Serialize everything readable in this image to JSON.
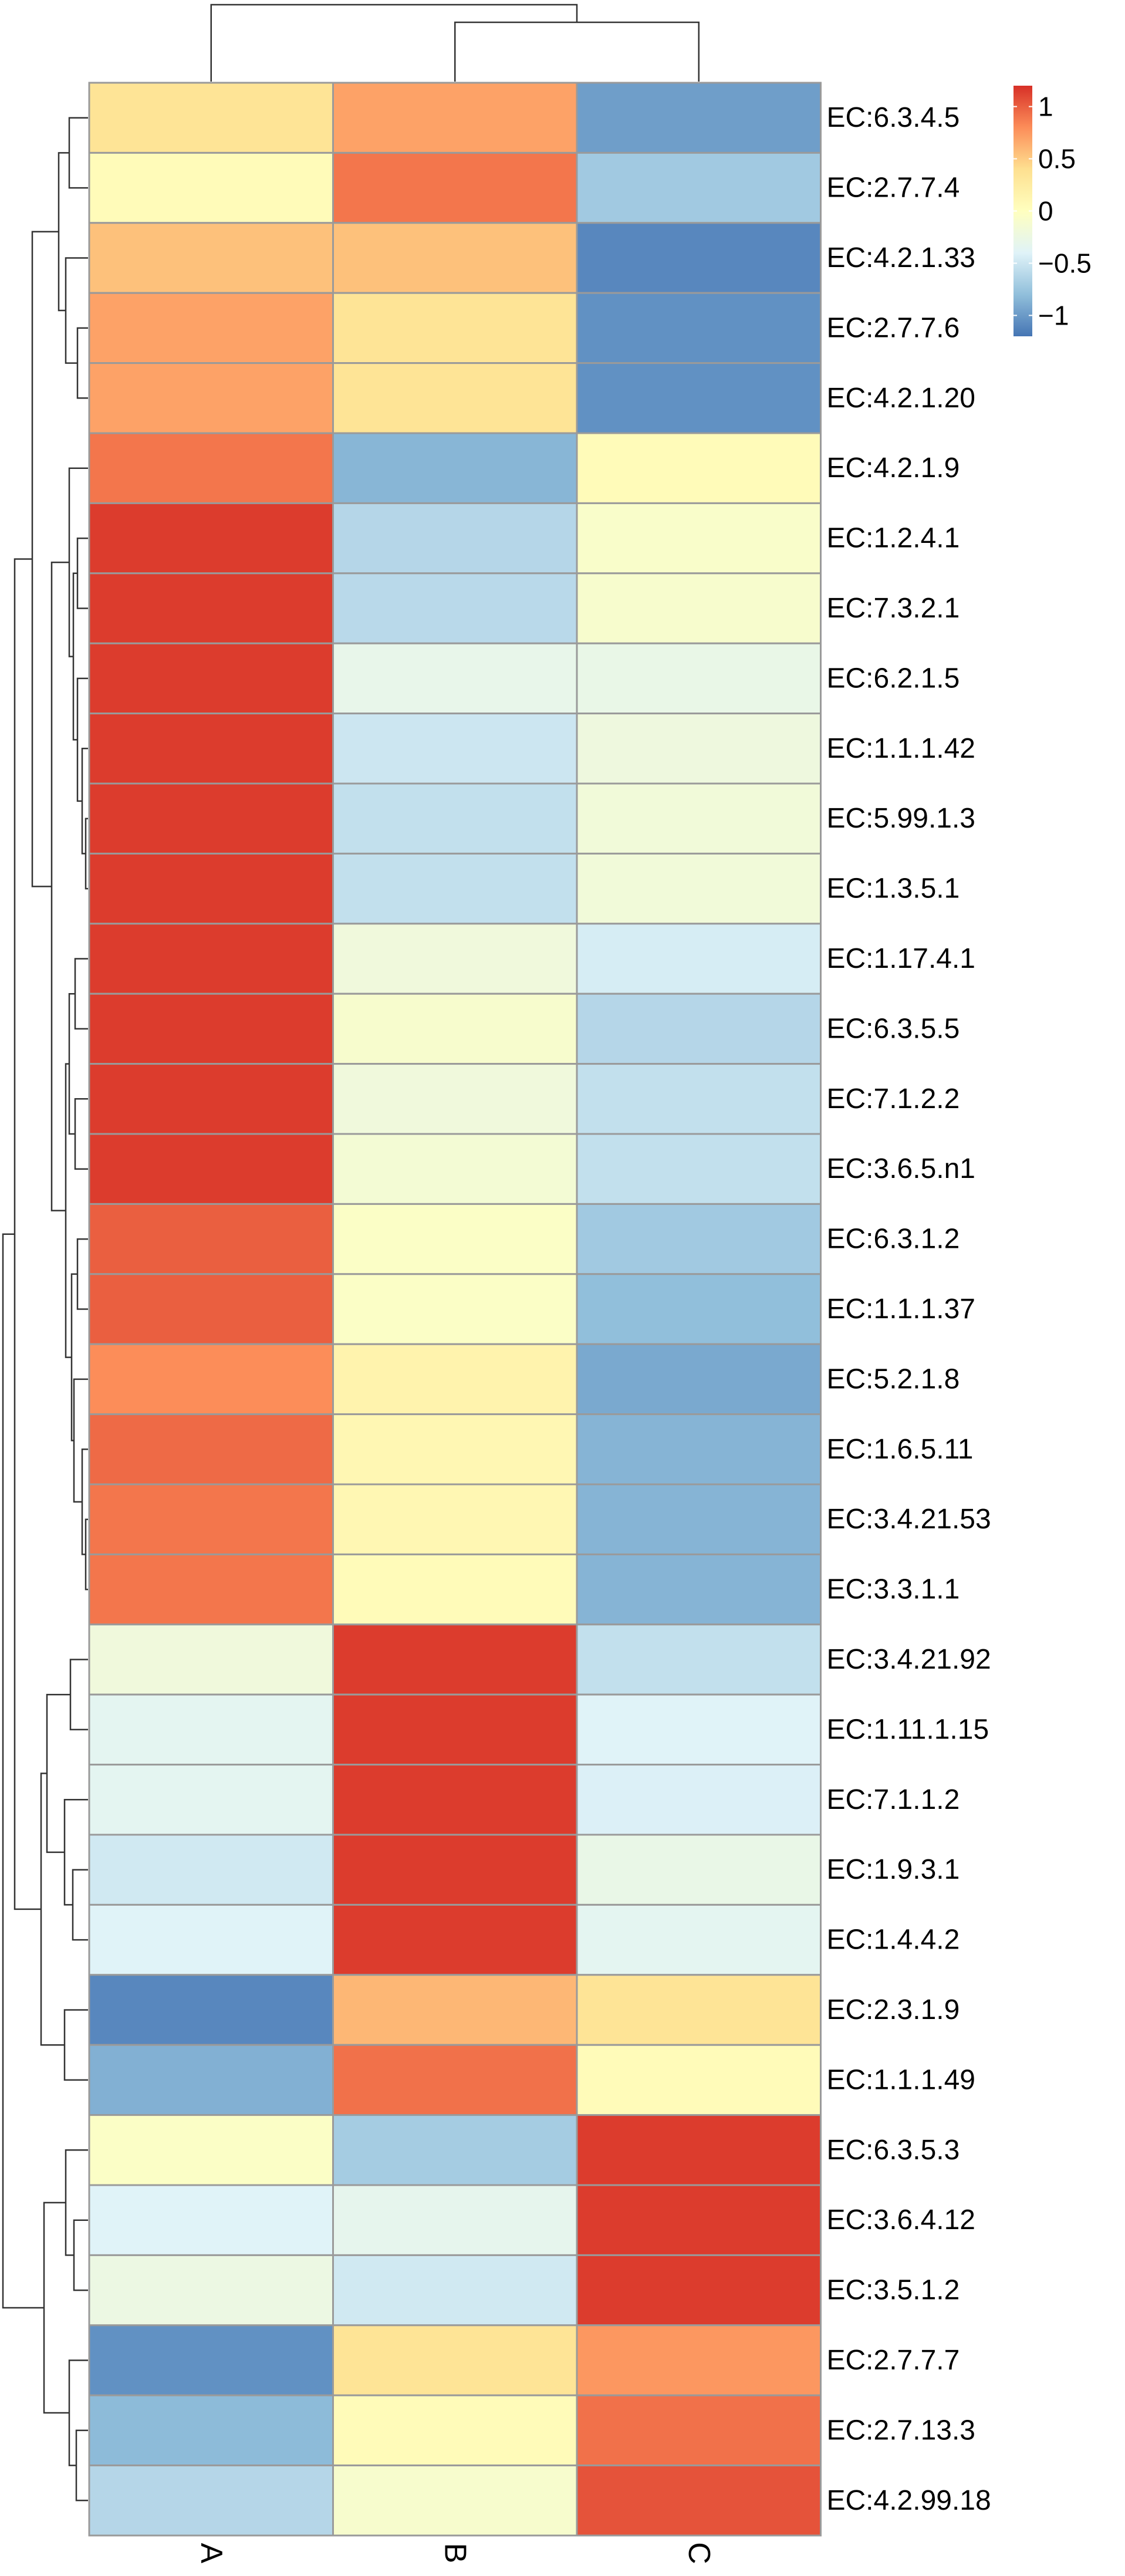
{
  "chart_data": {
    "type": "heatmap",
    "columns": [
      "A",
      "B",
      "C"
    ],
    "rows": [
      "EC:6.3.4.5",
      "EC:2.7.7.4",
      "EC:4.2.1.33",
      "EC:2.7.7.6",
      "EC:4.2.1.20",
      "EC:4.2.1.9",
      "EC:1.2.4.1",
      "EC:7.3.2.1",
      "EC:6.2.1.5",
      "EC:1.1.1.42",
      "EC:5.99.1.3",
      "EC:1.3.5.1",
      "EC:1.17.4.1",
      "EC:6.3.5.5",
      "EC:7.1.2.2",
      "EC:3.6.5.n1",
      "EC:6.3.1.2",
      "EC:1.1.1.37",
      "EC:5.2.1.8",
      "EC:1.6.5.11",
      "EC:3.4.21.53",
      "EC:3.3.1.1",
      "EC:3.4.21.92",
      "EC:1.11.1.15",
      "EC:7.1.1.2",
      "EC:1.9.3.1",
      "EC:1.4.4.2",
      "EC:2.3.1.9",
      "EC:1.1.1.49",
      "EC:6.3.5.3",
      "EC:3.6.4.12",
      "EC:3.5.1.2",
      "EC:2.7.7.7",
      "EC:2.7.13.3",
      "EC:4.2.99.18"
    ],
    "values": [
      [
        0.35,
        0.7,
        -0.98
      ],
      [
        0.05,
        0.9,
        -0.72
      ],
      [
        0.55,
        0.55,
        -1.1
      ],
      [
        0.7,
        0.35,
        -1.05
      ],
      [
        0.7,
        0.35,
        -1.05
      ],
      [
        0.9,
        -0.85,
        0.05
      ],
      [
        1.15,
        -0.62,
        -0.08
      ],
      [
        1.15,
        -0.6,
        -0.1
      ],
      [
        1.15,
        -0.3,
        -0.28
      ],
      [
        1.15,
        -0.5,
        -0.22
      ],
      [
        1.15,
        -0.55,
        -0.18
      ],
      [
        1.15,
        -0.55,
        -0.18
      ],
      [
        1.15,
        -0.2,
        -0.45
      ],
      [
        1.15,
        -0.1,
        -0.62
      ],
      [
        1.15,
        -0.2,
        -0.55
      ],
      [
        1.15,
        -0.15,
        -0.55
      ],
      [
        1.0,
        -0.05,
        -0.72
      ],
      [
        1.0,
        -0.05,
        -0.8
      ],
      [
        0.8,
        0.15,
        -0.92
      ],
      [
        0.95,
        0.1,
        -0.86
      ],
      [
        0.9,
        0.1,
        -0.86
      ],
      [
        0.9,
        0.05,
        -0.86
      ],
      [
        -0.2,
        1.15,
        -0.55
      ],
      [
        -0.35,
        1.15,
        -0.4
      ],
      [
        -0.35,
        1.15,
        -0.42
      ],
      [
        -0.48,
        1.15,
        -0.28
      ],
      [
        -0.4,
        1.15,
        -0.35
      ],
      [
        -1.1,
        0.6,
        0.35
      ],
      [
        -0.88,
        0.92,
        0.05
      ],
      [
        -0.05,
        -0.7,
        1.15
      ],
      [
        -0.4,
        -0.32,
        1.15
      ],
      [
        -0.25,
        -0.48,
        1.15
      ],
      [
        -1.05,
        0.35,
        0.75
      ],
      [
        -0.82,
        0.05,
        0.92
      ],
      [
        -0.62,
        -0.1,
        1.05
      ]
    ],
    "color_scale": {
      "min": -1.2,
      "max": 1.2,
      "colors": [
        "#4575b4",
        "#91bfdb",
        "#e0f3f8",
        "#ffffbf",
        "#fee090",
        "#fc8d59",
        "#d73027"
      ]
    },
    "legend": {
      "position": "top-right",
      "ticks": [
        1,
        0.5,
        0,
        -0.5,
        -1
      ],
      "tick_labels": [
        "1",
        "0.5",
        "0",
        "−0.5",
        "−1"
      ]
    },
    "row_dendrogram": true,
    "column_dendrogram": true
  }
}
